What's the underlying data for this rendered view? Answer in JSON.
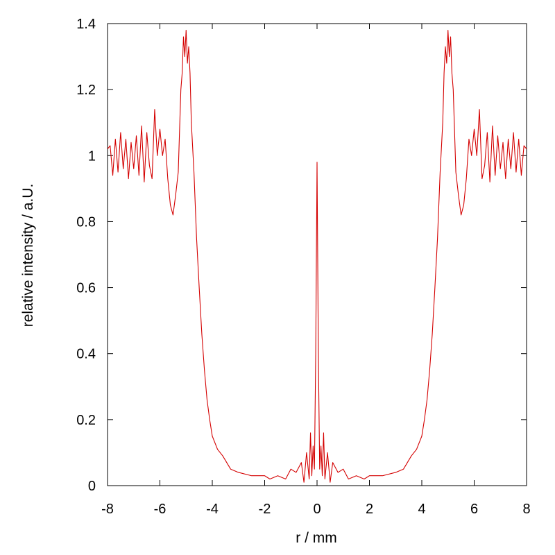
{
  "chart_data": {
    "type": "line",
    "title": "",
    "xlabel": "r / mm",
    "ylabel": "relative intensity / a.U.",
    "xlim": [
      -8,
      8
    ],
    "ylim": [
      0,
      1.4
    ],
    "x_ticks": [
      "-8",
      "-6",
      "-4",
      "-2",
      "0",
      "2",
      "4",
      "6",
      "8"
    ],
    "y_ticks": [
      "0",
      "0.2",
      "0.4",
      "0.6",
      "0.8",
      "1",
      "1.2",
      "1.4"
    ],
    "grid": false,
    "legend": "none",
    "series": [
      {
        "color": "#d40000",
        "x": [
          0,
          0.05,
          0.1,
          0.15,
          0.2,
          0.25,
          0.3,
          0.4,
          0.5,
          0.6,
          0.8,
          1.0,
          1.2,
          1.5,
          1.8,
          2.0,
          2.5,
          3.0,
          3.3,
          3.6,
          3.8,
          4.0,
          4.1,
          4.2,
          4.3,
          4.4,
          4.5,
          4.6,
          4.7,
          4.8,
          4.85,
          4.9,
          4.95,
          5.0,
          5.05,
          5.1,
          5.15,
          5.2,
          5.3,
          5.4,
          5.5,
          5.6,
          5.7,
          5.8,
          5.9,
          6.0,
          6.1,
          6.2,
          6.3,
          6.4,
          6.5,
          6.6,
          6.7,
          6.8,
          6.9,
          7.0,
          7.1,
          7.2,
          7.3,
          7.4,
          7.5,
          7.6,
          7.7,
          7.8,
          7.9,
          8.0
        ],
        "y": [
          0.98,
          0.4,
          0.05,
          0.12,
          0.03,
          0.16,
          0.02,
          0.1,
          0.01,
          0.07,
          0.04,
          0.05,
          0.02,
          0.03,
          0.02,
          0.03,
          0.03,
          0.04,
          0.05,
          0.09,
          0.11,
          0.15,
          0.2,
          0.26,
          0.35,
          0.46,
          0.6,
          0.75,
          0.95,
          1.1,
          1.25,
          1.33,
          1.28,
          1.38,
          1.3,
          1.36,
          1.25,
          1.2,
          0.95,
          0.88,
          0.82,
          0.85,
          0.93,
          1.05,
          1.0,
          1.08,
          1.0,
          1.14,
          0.93,
          0.97,
          1.07,
          0.92,
          1.09,
          0.94,
          1.06,
          0.96,
          1.04,
          0.93,
          1.05,
          0.96,
          1.07,
          0.95,
          1.05,
          0.94,
          1.03,
          1.02
        ]
      }
    ]
  }
}
